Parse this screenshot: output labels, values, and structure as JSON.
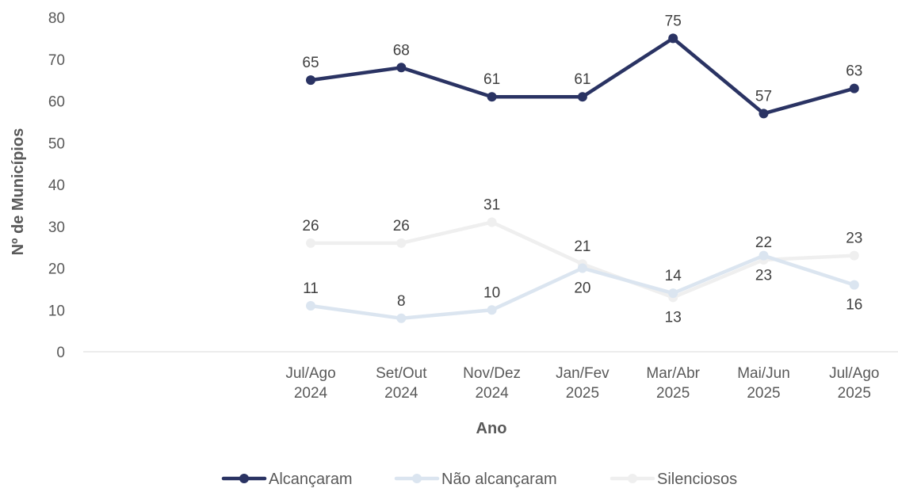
{
  "chart_data": {
    "type": "line",
    "xlabel": "Ano",
    "ylabel": "Nº de Municípios",
    "ylim": [
      0,
      80
    ],
    "yticks": [
      0,
      10,
      20,
      30,
      40,
      50,
      60,
      70,
      80
    ],
    "grid": false,
    "legend": "bottom",
    "categories": [
      [
        "Jul/Ago",
        "2024"
      ],
      [
        "Set/Out",
        "2024"
      ],
      [
        "Nov/Dez",
        "2024"
      ],
      [
        "Jan/Fev",
        "2025"
      ],
      [
        "Mar/Abr",
        "2025"
      ],
      [
        "Mai/Jun",
        "2025"
      ],
      [
        "Jul/Ago",
        "2025"
      ]
    ],
    "series": [
      {
        "name": "Alcançaram",
        "color": "#2a3363",
        "values": [
          65,
          68,
          61,
          61,
          75,
          57,
          63
        ],
        "labels": [
          "65",
          "68",
          "61",
          "61",
          "75",
          "57",
          "63"
        ]
      },
      {
        "name": "Não alcançaram",
        "color": "#dbe5f0",
        "values": [
          11,
          8,
          10,
          20,
          14,
          23,
          16
        ],
        "labels": [
          "11",
          "8",
          "10",
          "20",
          "14",
          "23",
          "16"
        ]
      },
      {
        "name": "Silenciosos",
        "color": "#efefef",
        "values": [
          26,
          26,
          31,
          21,
          13,
          22,
          23
        ],
        "labels": [
          "26",
          "26",
          "31",
          "21",
          "13",
          "22",
          "23"
        ]
      }
    ]
  }
}
